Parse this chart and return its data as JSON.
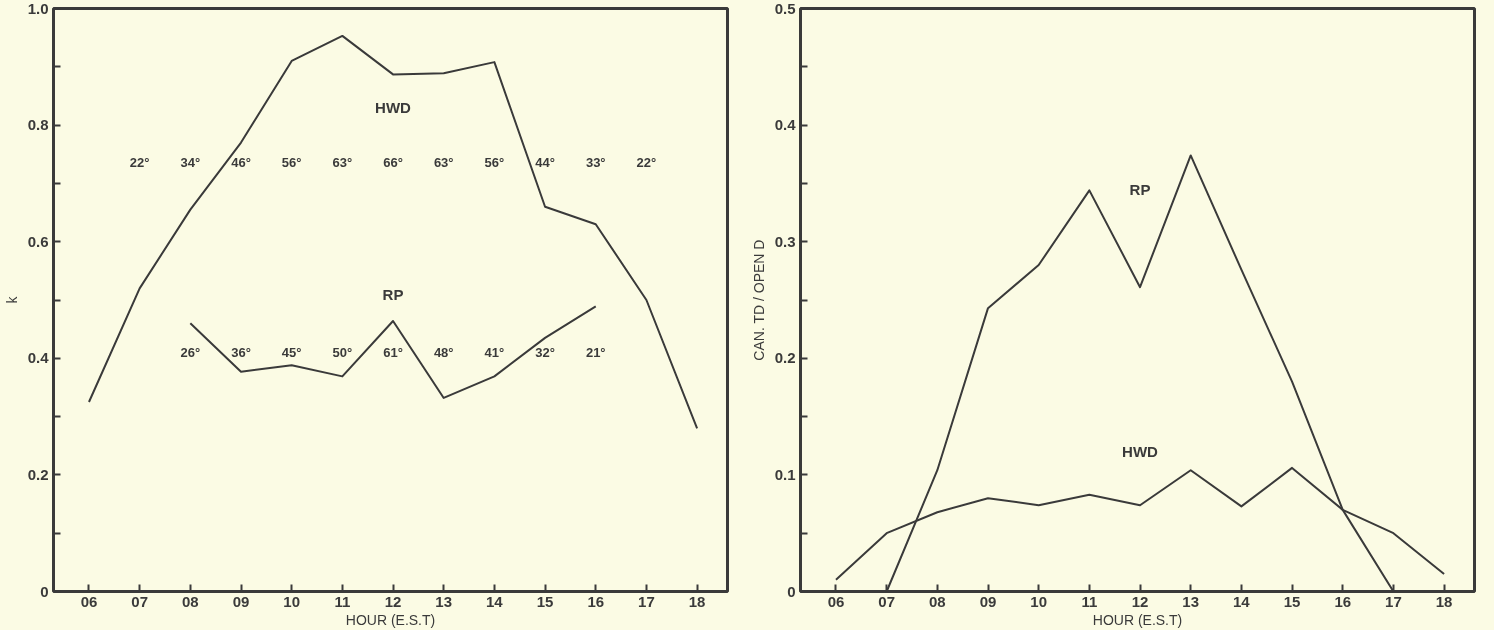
{
  "chart_data": [
    {
      "type": "line",
      "xlabel": "HOUR (E.S.T)",
      "ylabel": "k",
      "x": [
        6,
        7,
        8,
        9,
        10,
        11,
        12,
        13,
        14,
        15,
        16,
        17,
        18
      ],
      "xlim": [
        5.3,
        18.6
      ],
      "ylim": [
        0,
        1.0
      ],
      "xticks": [
        {
          "value": 6,
          "label": "06"
        },
        {
          "value": 7,
          "label": "07"
        },
        {
          "value": 8,
          "label": "08"
        },
        {
          "value": 9,
          "label": "09"
        },
        10,
        11,
        12,
        13,
        14,
        15,
        16,
        17,
        18
      ],
      "yticks": [
        0,
        {
          "value": 0.1,
          "label": null
        },
        0.2,
        {
          "value": 0.3,
          "label": null
        },
        0.4,
        {
          "value": 0.5,
          "label": null
        },
        0.6,
        {
          "value": 0.7,
          "label": null
        },
        0.8,
        {
          "value": 0.9,
          "label": null
        },
        {
          "value": 1.0,
          "label": "1.0"
        }
      ],
      "series": [
        {
          "name": "HWD",
          "color": "#3a3a3a",
          "values": [
            0.325,
            0.52,
            0.655,
            0.77,
            0.91,
            0.953,
            0.887,
            0.889,
            0.908,
            0.66,
            0.63,
            0.5,
            0.28
          ]
        },
        {
          "name": "RP",
          "color": "#3a3a3a",
          "values": [
            null,
            null,
            0.46,
            0.377,
            0.388,
            0.369,
            0.464,
            0.332,
            0.369,
            0.435,
            0.489,
            null,
            null
          ]
        }
      ],
      "annotations": [
        "22°",
        "34°",
        "46°",
        "56°",
        "63°",
        "66°",
        "63°",
        "56°",
        "44°",
        "33°",
        "22°",
        "26°",
        "36°",
        "45°",
        "50°",
        "61°",
        "48°",
        "41°",
        "32°",
        "21°"
      ],
      "grid": false,
      "legend": false,
      "marker": "none",
      "line_style": "solid"
    },
    {
      "type": "line",
      "xlabel": "HOUR (E.S.T)",
      "ylabel": "CAN. TD / OPEN D",
      "x": [
        6,
        7,
        8,
        9,
        10,
        11,
        12,
        13,
        14,
        15,
        16,
        17,
        18
      ],
      "xlim": [
        5.3,
        18.6
      ],
      "ylim": [
        0,
        0.5
      ],
      "xticks": [
        {
          "value": 6,
          "label": "06"
        },
        {
          "value": 7,
          "label": "07"
        },
        {
          "value": 8,
          "label": "08"
        },
        {
          "value": 9,
          "label": "09"
        },
        10,
        11,
        12,
        13,
        14,
        15,
        16,
        17,
        18
      ],
      "yticks": [
        0,
        {
          "value": 0.05,
          "label": null
        },
        0.1,
        {
          "value": 0.15,
          "label": null
        },
        0.2,
        {
          "value": 0.25,
          "label": null
        },
        0.3,
        {
          "value": 0.35,
          "label": null
        },
        0.4,
        {
          "value": 0.45,
          "label": null
        },
        0.5
      ],
      "series": [
        {
          "name": "HWD",
          "color": "#3a3a3a",
          "values": [
            0.01,
            0.05,
            0.068,
            0.08,
            0.074,
            0.083,
            0.074,
            0.104,
            0.073,
            0.106,
            0.07,
            0.05,
            0.015
          ]
        },
        {
          "name": "RP",
          "color": "#3a3a3a",
          "values": [
            null,
            0,
            0.104,
            0.243,
            0.28,
            0.344,
            0.261,
            0.374,
            0.276,
            0.18,
            0.07,
            0,
            null
          ]
        }
      ],
      "grid": false,
      "legend": false,
      "marker": "none",
      "line_style": "solid"
    }
  ]
}
